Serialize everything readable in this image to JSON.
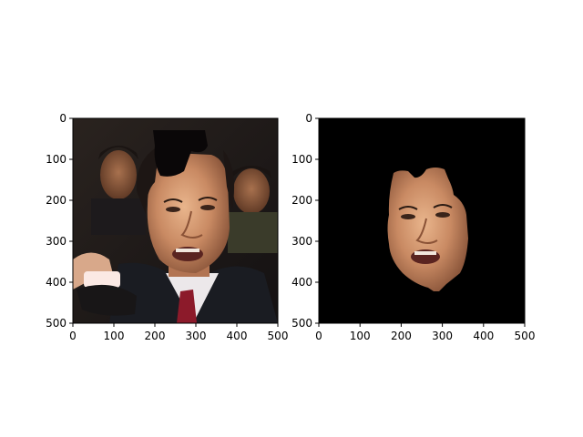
{
  "chart_data": [
    {
      "type": "image",
      "panel": "left",
      "content": "photo of a man in a dark suit and red tie speaking with a microphone, other men in background; a dark patch covers the top of his head",
      "xlim": [
        0,
        500
      ],
      "ylim": [
        500,
        0
      ],
      "x_ticks": [
        "0",
        "100",
        "200",
        "300",
        "400",
        "500"
      ],
      "y_ticks": [
        "0",
        "100",
        "200",
        "300",
        "400",
        "500"
      ]
    },
    {
      "type": "image",
      "panel": "right",
      "content": "segmented face of the same man on a black background",
      "xlim": [
        0,
        500
      ],
      "ylim": [
        500,
        0
      ],
      "x_ticks": [
        "0",
        "100",
        "200",
        "300",
        "400",
        "500"
      ],
      "y_ticks": [
        "0",
        "100",
        "200",
        "300",
        "400",
        "500"
      ]
    }
  ]
}
